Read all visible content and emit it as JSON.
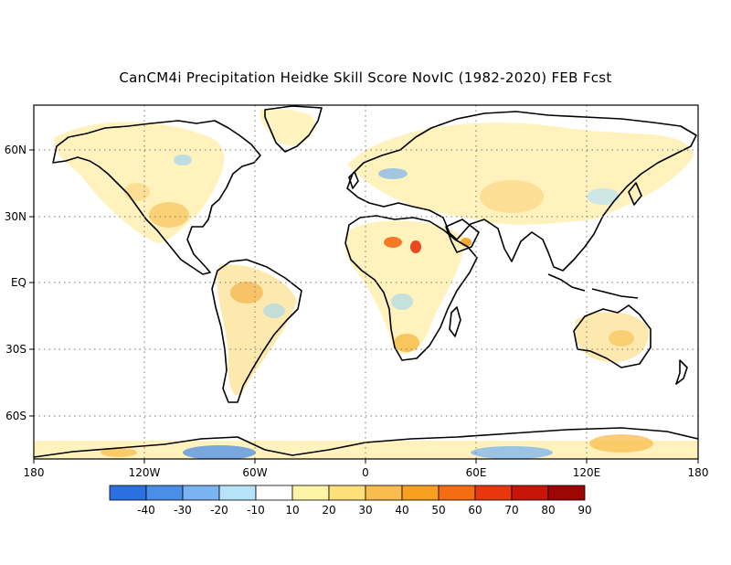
{
  "title": "CanCM4i Precipitation Heidke Skill Score NovIC (1982-2020) FEB Fcst",
  "map": {
    "lon_ticks": [
      "180",
      "120W",
      "60W",
      "0",
      "60E",
      "120E",
      "180"
    ],
    "lat_ticks": [
      "60N",
      "30N",
      "EQ",
      "30S",
      "60S"
    ],
    "lon_range": [
      -180,
      180
    ],
    "lat_range": [
      -80,
      80
    ],
    "grid": "dotted"
  },
  "colorbar": {
    "labels": [
      "-40",
      "-30",
      "-20",
      "-10",
      "10",
      "20",
      "30",
      "40",
      "50",
      "60",
      "70",
      "80",
      "90"
    ],
    "colors": [
      "#2c6fe0",
      "#4a8ee8",
      "#7ab3f0",
      "#b6e3f7",
      "#ffffff",
      "#fff3a8",
      "#fde07a",
      "#f8bd4c",
      "#f79f1f",
      "#f56d12",
      "#e8360d",
      "#c91409",
      "#9e0505"
    ]
  }
}
